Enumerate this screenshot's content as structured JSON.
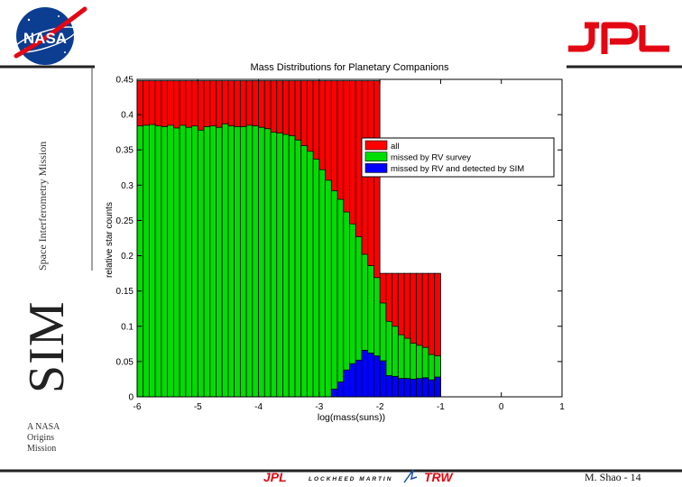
{
  "branding": {
    "nasa_logo_text": "NASA",
    "jpl_logo_text": "JPL",
    "mission_label": "Space Interferometry Mission",
    "sim_label": "SIM",
    "origins_lines": [
      "A NASA",
      "Origins",
      "Mission"
    ],
    "footer_logos": [
      "JPL",
      "LOCKHEED MARTIN",
      "TRW"
    ],
    "page_number": "M. Shao - 14"
  },
  "colors": {
    "all": "#ff0000",
    "missed_rv": "#00dd00",
    "detected_sim": "#0000ff",
    "nasa_blue": "#0b3d91",
    "jpl_red": "#e30613",
    "frame_line": "#222222"
  },
  "chart_data": {
    "type": "bar",
    "stacked_overlay": true,
    "title": "Mass Distributions for Planetary Companions",
    "xlabel": "log(mass(suns))",
    "ylabel": "relative star counts",
    "xlim": [
      -6,
      1
    ],
    "ylim": [
      0,
      0.45
    ],
    "x_ticks": [
      "-6",
      "-5",
      "-4",
      "-3",
      "-2",
      "-1",
      "0",
      "1"
    ],
    "y_ticks": [
      "0",
      "0.05",
      "0.1",
      "0.15",
      "0.2",
      "0.25",
      "0.3",
      "0.35",
      "0.4",
      "0.45"
    ],
    "bin_width": 0.1,
    "legend_position": "upper-right",
    "grid": false,
    "x": [
      -5.95,
      -5.85,
      -5.75,
      -5.65,
      -5.55,
      -5.45,
      -5.35,
      -5.25,
      -5.15,
      -5.05,
      -4.95,
      -4.85,
      -4.75,
      -4.65,
      -4.55,
      -4.45,
      -4.35,
      -4.25,
      -4.15,
      -4.05,
      -3.95,
      -3.85,
      -3.75,
      -3.65,
      -3.55,
      -3.45,
      -3.35,
      -3.25,
      -3.15,
      -3.05,
      -2.95,
      -2.85,
      -2.75,
      -2.65,
      -2.55,
      -2.45,
      -2.35,
      -2.25,
      -2.15,
      -2.05,
      -1.95,
      -1.85,
      -1.75,
      -1.65,
      -1.55,
      -1.45,
      -1.35,
      -1.25,
      -1.15,
      -1.05
    ],
    "series": [
      {
        "name": "all",
        "color": "#ff0000",
        "values": [
          0.448,
          0.448,
          0.448,
          0.448,
          0.448,
          0.448,
          0.448,
          0.448,
          0.448,
          0.448,
          0.448,
          0.448,
          0.448,
          0.448,
          0.448,
          0.448,
          0.448,
          0.448,
          0.448,
          0.448,
          0.448,
          0.448,
          0.448,
          0.448,
          0.448,
          0.448,
          0.448,
          0.448,
          0.448,
          0.448,
          0.448,
          0.448,
          0.448,
          0.448,
          0.448,
          0.448,
          0.448,
          0.448,
          0.448,
          0.448,
          0.175,
          0.175,
          0.175,
          0.175,
          0.175,
          0.175,
          0.175,
          0.175,
          0.175,
          0.175
        ]
      },
      {
        "name": "missed by RV survey",
        "color": "#00dd00",
        "values": [
          0.384,
          0.385,
          0.386,
          0.384,
          0.383,
          0.385,
          0.381,
          0.385,
          0.382,
          0.384,
          0.378,
          0.383,
          0.384,
          0.382,
          0.387,
          0.384,
          0.383,
          0.383,
          0.385,
          0.384,
          0.382,
          0.38,
          0.375,
          0.374,
          0.372,
          0.37,
          0.364,
          0.356,
          0.348,
          0.337,
          0.322,
          0.307,
          0.292,
          0.28,
          0.262,
          0.245,
          0.227,
          0.202,
          0.186,
          0.169,
          0.133,
          0.107,
          0.1,
          0.088,
          0.083,
          0.076,
          0.073,
          0.07,
          0.06,
          0.058
        ]
      },
      {
        "name": "missed by RV and detected by SIM",
        "color": "#0000ff",
        "values": [
          0,
          0,
          0,
          0,
          0,
          0,
          0,
          0,
          0,
          0,
          0,
          0,
          0,
          0,
          0,
          0,
          0,
          0,
          0,
          0,
          0,
          0,
          0,
          0,
          0,
          0,
          0,
          0,
          0,
          0,
          0,
          0,
          0.011,
          0.021,
          0.038,
          0.047,
          0.052,
          0.066,
          0.062,
          0.058,
          0.051,
          0.03,
          0.029,
          0.026,
          0.026,
          0.025,
          0.026,
          0.027,
          0.024,
          0.028
        ]
      }
    ]
  }
}
